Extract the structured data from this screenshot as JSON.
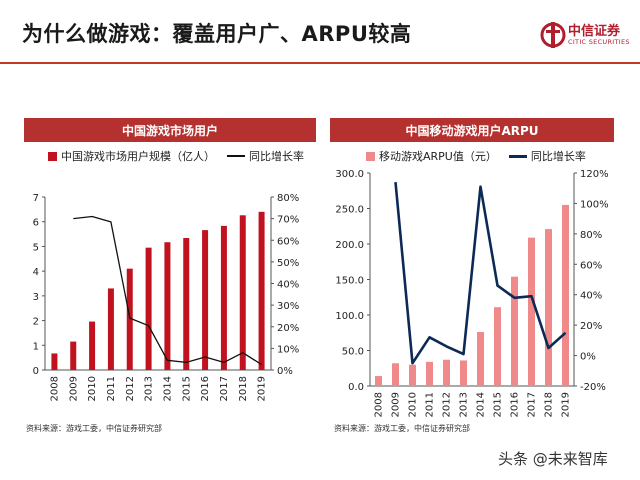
{
  "header": {
    "title": "为什么做游戏：覆盖用户广、ARPU较高",
    "logo_cn": "中信证券",
    "logo_en": "CITIC SECURITIES"
  },
  "left": {
    "panel_title": "中国游戏市场用户",
    "source": "资料来源：游戏工委，中信证券研究部"
  },
  "right": {
    "panel_title": "中国移动游戏用户ARPU",
    "source": "资料来源：游戏工委，中信证券研究部"
  },
  "watermark": "头条 @未来智库",
  "colors": {
    "dark_red": "#c1121f",
    "light_red": "#f08a8a",
    "black": "#111111",
    "navy": "#0d2a57",
    "header": "#b5312f"
  },
  "chart_data": [
    {
      "type": "bar",
      "categories": [
        "2008",
        "2009",
        "2010",
        "2011",
        "2012",
        "2013",
        "2014",
        "2015",
        "2016",
        "2017",
        "2018",
        "2019"
      ],
      "series": [
        {
          "name": "中国游戏市场用户规模（亿人）",
          "axis": "left",
          "values": [
            0.67,
            1.15,
            1.96,
            3.3,
            4.1,
            4.95,
            5.17,
            5.34,
            5.66,
            5.83,
            6.26,
            6.4
          ]
        },
        {
          "name": "同比增长率",
          "axis": "right",
          "type": "line",
          "values": [
            null,
            70.0,
            71.0,
            68.5,
            24.0,
            20.5,
            4.5,
            3.5,
            6.0,
            3.5,
            8.0,
            2.5
          ]
        }
      ],
      "left_axis": {
        "min": 0,
        "max": 7,
        "ticks": [
          0,
          1,
          2,
          3,
          4,
          5,
          6,
          7
        ],
        "labels": [
          "0",
          "1",
          "2",
          "3",
          "4",
          "5",
          "6",
          "7"
        ]
      },
      "right_axis": {
        "min": 0,
        "max": 80,
        "ticks": [
          0,
          10,
          20,
          30,
          40,
          50,
          60,
          70,
          80
        ],
        "labels": [
          "0%",
          "10%",
          "20%",
          "30%",
          "40%",
          "50%",
          "60%",
          "70%",
          "80%"
        ]
      },
      "legend": "top"
    },
    {
      "type": "bar",
      "categories": [
        "2008",
        "2009",
        "2010",
        "2011",
        "2012",
        "2013",
        "2014",
        "2015",
        "2016",
        "2017",
        "2018",
        "2019"
      ],
      "series": [
        {
          "name": "移动游戏ARPU值（元）",
          "axis": "left",
          "values": [
            14,
            32,
            30,
            34,
            37,
            36,
            76,
            111,
            154,
            209,
            221,
            255
          ]
        },
        {
          "name": "同比增长率",
          "axis": "right",
          "type": "line",
          "values": [
            null,
            114,
            -5,
            12,
            6,
            1,
            111,
            46,
            38,
            39,
            5,
            15
          ]
        }
      ],
      "left_axis": {
        "min": 0,
        "max": 300,
        "ticks": [
          0,
          50,
          100,
          150,
          200,
          250,
          300
        ],
        "labels": [
          "0.0",
          "50.0",
          "100.0",
          "150.0",
          "200.0",
          "250.0",
          "300.0"
        ]
      },
      "right_axis": {
        "min": -20,
        "max": 120,
        "ticks": [
          -20,
          0,
          20,
          40,
          60,
          80,
          100,
          120
        ],
        "labels": [
          "-20%",
          "0%",
          "20%",
          "40%",
          "60%",
          "80%",
          "100%",
          "120%"
        ]
      },
      "legend": "top"
    }
  ]
}
